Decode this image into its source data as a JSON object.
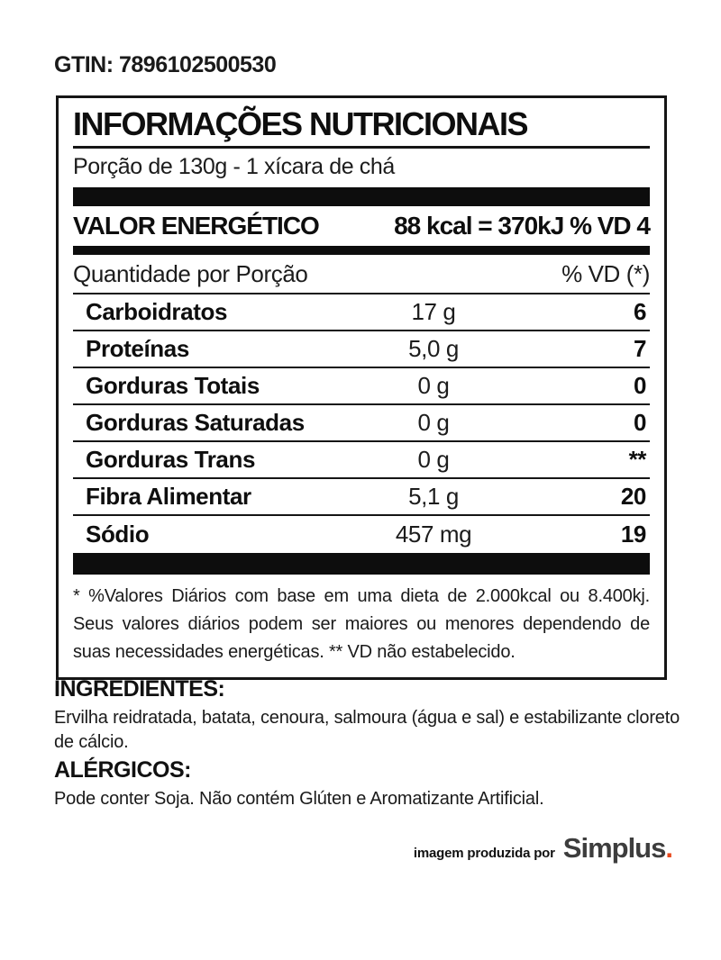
{
  "gtin_label": "GTIN: 7896102500530",
  "nutrition_table": {
    "title": "INFORMAÇÕES NUTRICIONAIS",
    "serving": "Porção de 130g - 1 xícara de chá",
    "energy": {
      "label": "VALOR ENERGÉTICO",
      "value": "88 kcal = 370kJ % VD 4"
    },
    "columns": {
      "quantity_header": "Quantidade por Porção",
      "dv_header": "% VD (*)"
    },
    "rows": [
      {
        "name": "Carboidratos",
        "amount": "17 g",
        "dv": "6"
      },
      {
        "name": "Proteínas",
        "amount": "5,0 g",
        "dv": "7"
      },
      {
        "name": "Gorduras Totais",
        "amount": "0 g",
        "dv": "0"
      },
      {
        "name": "Gorduras Saturadas",
        "amount": "0 g",
        "dv": "0"
      },
      {
        "name": "Gorduras Trans",
        "amount": "0 g",
        "dv": "**"
      },
      {
        "name": "Fibra Alimentar",
        "amount": "5,1 g",
        "dv": "20"
      },
      {
        "name": "Sódio",
        "amount": "457 mg",
        "dv": "19"
      }
    ],
    "footnote": "* %Valores Diários com base em uma dieta de 2.000kcal ou 8.400kj. Seus valores diários podem ser maiores ou menores dependendo de suas necessidades energéticas. ** VD não estabelecido."
  },
  "ingredients": {
    "heading": "INGREDIENTES:",
    "text": "Ervilha reidratada, batata, cenoura, salmoura (água e sal) e estabilizante cloreto de cálcio."
  },
  "allergens": {
    "heading": "ALÉRGICOS:",
    "text": "Pode conter Soja. Não contém Glúten e Aromatizante Artificial."
  },
  "credit": {
    "prefix": "imagem produzida por",
    "brand": "Simplus",
    "brand_suffix": ".",
    "brand_color": "#3d3d3d",
    "dot_color": "#e8481c"
  }
}
